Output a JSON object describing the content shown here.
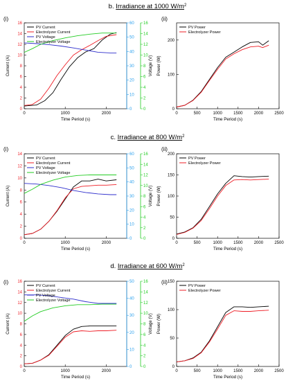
{
  "figure": {
    "sections": [
      {
        "label": "b. ",
        "title": "Irradiance at 1000 W/m",
        "sup": "2"
      },
      {
        "label": "c. ",
        "title": "Irradiance at 800 W/m",
        "sup": "2"
      },
      {
        "label": "d. ",
        "title": "Irradiance at 600 W/m",
        "sup": "2"
      }
    ],
    "panel_labels": {
      "left": "(i)",
      "right": "(ii)"
    },
    "colors": {
      "pv_current": "#000000",
      "electrolyzer_current": "#ee1c24",
      "pv_voltage": "#2e2ecc",
      "electrolyzer_voltage": "#22cc22",
      "axis_current": "#ee1c24",
      "axis_pv_voltage": "#2aa0ee",
      "axis_el_voltage": "#22cc22"
    }
  },
  "chart_data": [
    {
      "type": "line",
      "id": "b-i",
      "xlabel": "Time Period (s)",
      "ylabel": "Current (A)",
      "y2label": "Voltage (V)",
      "xlim": [
        0,
        2500
      ],
      "xticks": [
        0,
        1000,
        2000
      ],
      "ylim": [
        0,
        16
      ],
      "yticks": [
        0,
        2,
        4,
        6,
        8,
        10,
        12,
        14,
        16
      ],
      "y2lim": [
        0,
        60
      ],
      "y2ticks": [
        0,
        10,
        20,
        30,
        40,
        50,
        60
      ],
      "y3lim": [
        0,
        16
      ],
      "y3ticks": [
        0,
        2,
        4,
        6,
        8,
        10,
        12,
        14,
        16
      ],
      "legend": "top-left",
      "series": [
        {
          "name": "PV Current",
          "axis": "left",
          "x": [
            0,
            300,
            500,
            700,
            900,
            1100,
            1300,
            1500,
            1700,
            1900,
            2100,
            2250
          ],
          "y": [
            0.5,
            0.7,
            1.5,
            3.0,
            5.5,
            7.8,
            9.5,
            10.6,
            11.2,
            12.8,
            13.9,
            14.2
          ]
        },
        {
          "name": "Electrolyzer Current",
          "axis": "left",
          "x": [
            0,
            200,
            400,
            600,
            800,
            1000,
            1200,
            1400,
            1600,
            1800,
            2000,
            2250
          ],
          "y": [
            0.6,
            0.8,
            1.8,
            3.8,
            6.2,
            8.2,
            10.0,
            11.0,
            11.8,
            12.7,
            13.5,
            13.8
          ]
        },
        {
          "name": "PV Voltage",
          "axis": "right1",
          "x": [
            0,
            300,
            600,
            900,
            1200,
            1500,
            1800,
            2100,
            2250
          ],
          "y": [
            46,
            45.5,
            44.8,
            43.8,
            42.5,
            41.0,
            39.5,
            39.0,
            39.0
          ]
        },
        {
          "name": "Electrolyzer Voltage",
          "axis": "right2",
          "x": [
            0,
            200,
            400,
            700,
            1000,
            1300,
            1600,
            1900,
            2100,
            2250
          ],
          "y": [
            10.5,
            11.2,
            12.0,
            12.7,
            13.2,
            13.6,
            13.9,
            14.1,
            14.1,
            14.1
          ]
        }
      ]
    },
    {
      "type": "line",
      "id": "b-ii",
      "xlabel": "Time Period (s)",
      "ylabel": "Power (W)",
      "xlim": [
        0,
        2500
      ],
      "xticks": [
        0,
        500,
        1000,
        1500,
        2000,
        2500
      ],
      "ylim": [
        0,
        250
      ],
      "yticks": [
        0,
        100,
        200
      ],
      "legend": "top-left",
      "series": [
        {
          "name": "PV Power",
          "x": [
            0,
            200,
            400,
            600,
            800,
            1000,
            1200,
            1400,
            1600,
            1800,
            2000,
            2100,
            2250
          ],
          "y": [
            5,
            10,
            25,
            50,
            85,
            120,
            150,
            165,
            180,
            193,
            195,
            185,
            198
          ]
        },
        {
          "name": "Electrolyzer Power",
          "x": [
            0,
            200,
            400,
            600,
            800,
            1000,
            1200,
            1400,
            1600,
            1800,
            2000,
            2100,
            2250
          ],
          "y": [
            5,
            10,
            24,
            48,
            82,
            115,
            145,
            160,
            172,
            180,
            182,
            178,
            185
          ]
        }
      ]
    },
    {
      "type": "line",
      "id": "c-i",
      "xlabel": "Time Period (s)",
      "ylabel": "Current (A)",
      "y2label": "Voltage (V)",
      "xlim": [
        0,
        2500
      ],
      "xticks": [
        0,
        1000,
        2000
      ],
      "ylim": [
        0,
        14
      ],
      "yticks": [
        0,
        2,
        4,
        6,
        8,
        10,
        12,
        14
      ],
      "y2lim": [
        0,
        60
      ],
      "y2ticks": [
        0,
        10,
        20,
        30,
        40,
        50,
        60
      ],
      "y3lim": [
        0,
        16
      ],
      "y3ticks": [
        0,
        2,
        4,
        6,
        8,
        10,
        12,
        14,
        16
      ],
      "legend": "top-left",
      "series": [
        {
          "name": "PV Current",
          "axis": "left",
          "x": [
            0,
            200,
            400,
            600,
            800,
            1000,
            1200,
            1400,
            1600,
            1800,
            2000,
            2250
          ],
          "y": [
            0.6,
            0.8,
            1.5,
            2.8,
            4.5,
            6.5,
            8.5,
            9.5,
            9.5,
            9.8,
            9.5,
            9.7
          ]
        },
        {
          "name": "Electrolyzer Current",
          "axis": "left",
          "x": [
            0,
            200,
            400,
            600,
            800,
            1000,
            1200,
            1400,
            1600,
            1800,
            2000,
            2250
          ],
          "y": [
            0.6,
            0.8,
            1.5,
            2.8,
            4.6,
            6.7,
            8.2,
            8.6,
            8.7,
            8.8,
            8.8,
            8.9
          ]
        },
        {
          "name": "PV Voltage",
          "axis": "right1",
          "x": [
            0,
            300,
            600,
            900,
            1200,
            1500,
            1800,
            2100,
            2250
          ],
          "y": [
            39,
            38.5,
            37.5,
            36,
            34,
            32.5,
            31.5,
            31,
            31
          ]
        },
        {
          "name": "Electrolyzer Voltage",
          "axis": "right2",
          "x": [
            0,
            200,
            400,
            700,
            1000,
            1300,
            1600,
            1900,
            2250
          ],
          "y": [
            8.5,
            9.3,
            10.2,
            11.0,
            11.6,
            11.9,
            12.0,
            12.0,
            12.0
          ]
        }
      ]
    },
    {
      "type": "line",
      "id": "c-ii",
      "xlabel": "Time Period (s)",
      "ylabel": "Power (W)",
      "xlim": [
        0,
        2500
      ],
      "xticks": [
        0,
        500,
        1000,
        1500,
        2000,
        2500
      ],
      "ylim": [
        0,
        200
      ],
      "yticks": [
        0,
        50,
        100,
        150,
        200
      ],
      "legend": "top-left",
      "series": [
        {
          "name": "PV Power",
          "x": [
            0,
            200,
            400,
            600,
            800,
            1000,
            1200,
            1400,
            1600,
            1800,
            2000,
            2250
          ],
          "y": [
            10,
            15,
            25,
            45,
            75,
            105,
            130,
            148,
            146,
            145,
            146,
            147
          ]
        },
        {
          "name": "Electrolyzer Power",
          "x": [
            0,
            200,
            400,
            600,
            800,
            1000,
            1200,
            1400,
            1600,
            1800,
            2000,
            2250
          ],
          "y": [
            9,
            14,
            24,
            42,
            70,
            100,
            125,
            138,
            139,
            138,
            139,
            140
          ]
        }
      ]
    },
    {
      "type": "line",
      "id": "d-i",
      "xlabel": "Time Period (s)",
      "ylabel": "Current (A)",
      "y2label": "Voltage (V)",
      "xlim": [
        0,
        2500
      ],
      "xticks": [
        0,
        1000,
        2000
      ],
      "ylim": [
        0,
        16
      ],
      "yticks": [
        0,
        2,
        4,
        6,
        8,
        10,
        12,
        14,
        16
      ],
      "y2lim": [
        0,
        50
      ],
      "y2ticks": [
        0,
        10,
        20,
        30,
        40,
        50
      ],
      "y3lim": [
        0,
        16
      ],
      "y3ticks": [
        0,
        2,
        4,
        6,
        8,
        10,
        12,
        14,
        16
      ],
      "legend": "top-left",
      "series": [
        {
          "name": "PV Current",
          "axis": "left",
          "x": [
            0,
            200,
            400,
            600,
            800,
            1000,
            1200,
            1400,
            1600,
            1800,
            2000,
            2250
          ],
          "y": [
            0.5,
            0.6,
            1.2,
            2.2,
            4.0,
            5.8,
            7.0,
            7.5,
            7.6,
            7.6,
            7.6,
            7.6
          ]
        },
        {
          "name": "Electrolyzer Current",
          "axis": "left",
          "x": [
            0,
            200,
            400,
            600,
            800,
            1000,
            1200,
            1400,
            1600,
            1800,
            2000,
            2250
          ],
          "y": [
            0.5,
            0.6,
            1.2,
            2.1,
            3.8,
            5.5,
            6.5,
            6.7,
            6.6,
            6.7,
            6.7,
            6.8
          ]
        },
        {
          "name": "PV Voltage",
          "axis": "right1",
          "x": [
            0,
            300,
            600,
            900,
            1200,
            1500,
            1800,
            2100,
            2250
          ],
          "y": [
            42,
            42,
            41.5,
            40.5,
            39.5,
            38,
            37,
            37,
            37
          ]
        },
        {
          "name": "Electrolyzer Voltage",
          "axis": "right2",
          "x": [
            0,
            200,
            400,
            700,
            1000,
            1300,
            1600,
            1900,
            2250
          ],
          "y": [
            8.5,
            9.5,
            10.3,
            11.0,
            11.4,
            11.6,
            11.6,
            11.7,
            11.7
          ]
        }
      ]
    },
    {
      "type": "line",
      "id": "d-ii",
      "xlabel": "Time Period (s)",
      "ylabel": "Power (W)",
      "xlim": [
        0,
        2500
      ],
      "xticks": [
        0,
        500,
        1000,
        1500,
        2000,
        2500
      ],
      "ylim": [
        0,
        150
      ],
      "yticks": [
        0,
        50,
        100,
        150
      ],
      "legend": "top-left",
      "series": [
        {
          "name": "PV Power",
          "x": [
            0,
            200,
            400,
            600,
            800,
            1000,
            1200,
            1400,
            1600,
            1800,
            2000,
            2250
          ],
          "y": [
            8,
            10,
            15,
            25,
            45,
            70,
            95,
            105,
            105,
            104,
            105,
            106
          ]
        },
        {
          "name": "Electrolyzer Power",
          "x": [
            0,
            200,
            400,
            600,
            800,
            1000,
            1200,
            1400,
            1600,
            1800,
            2000,
            2250
          ],
          "y": [
            8,
            10,
            14,
            24,
            43,
            66,
            90,
            98,
            97,
            97,
            98,
            99
          ]
        }
      ]
    }
  ]
}
